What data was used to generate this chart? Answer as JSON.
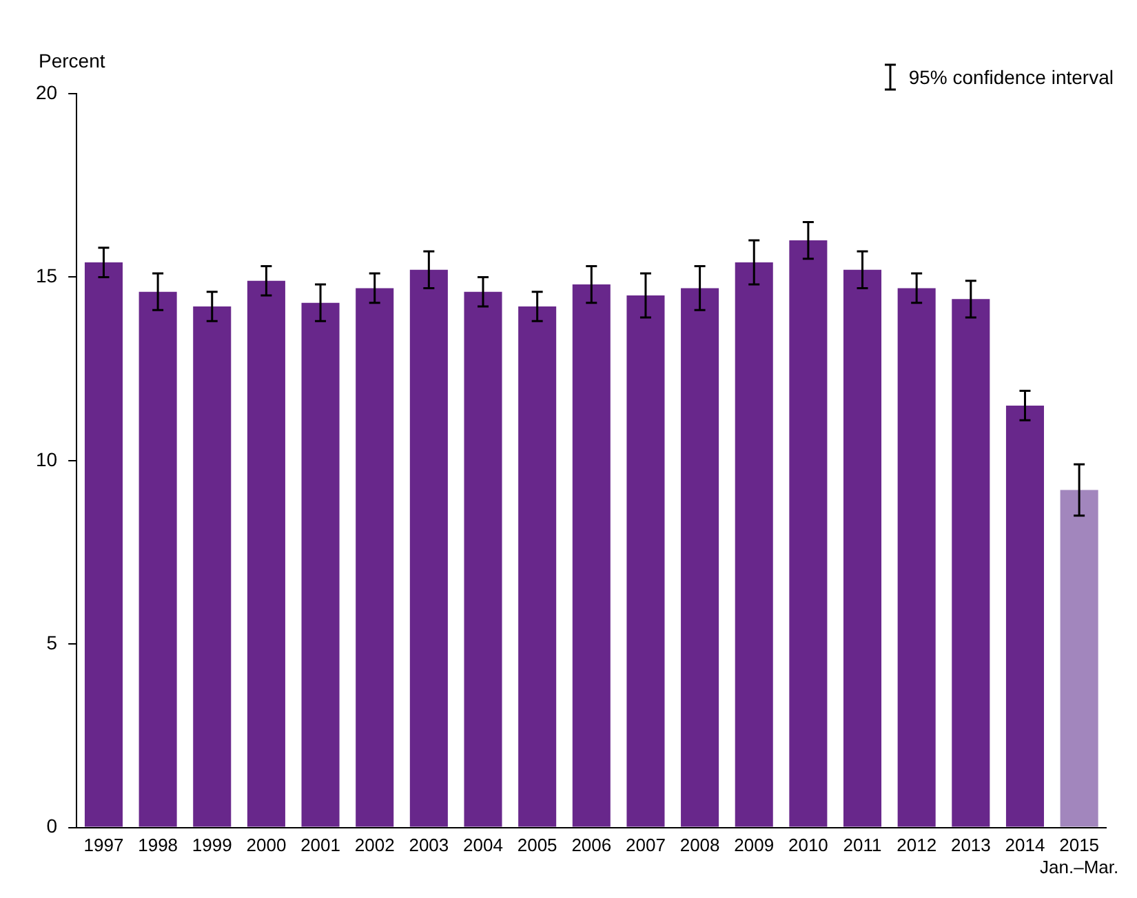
{
  "chart_data": {
    "type": "bar",
    "ylabel": "Percent",
    "categories": [
      "1997",
      "1998",
      "1999",
      "2000",
      "2001",
      "2002",
      "2003",
      "2004",
      "2005",
      "2006",
      "2007",
      "2008",
      "2009",
      "2010",
      "2011",
      "2012",
      "2013",
      "2014",
      "2015\nJan.–Mar."
    ],
    "values": [
      15.4,
      14.6,
      14.2,
      14.9,
      14.3,
      14.7,
      15.2,
      14.6,
      14.2,
      14.8,
      14.5,
      14.7,
      15.4,
      16.0,
      15.2,
      14.7,
      14.4,
      11.5,
      9.2
    ],
    "errors": [
      0.4,
      0.5,
      0.4,
      0.4,
      0.5,
      0.4,
      0.5,
      0.4,
      0.4,
      0.5,
      0.6,
      0.6,
      0.6,
      0.5,
      0.5,
      0.4,
      0.5,
      0.4,
      0.7
    ],
    "colors": [
      "#68278b",
      "#68278b",
      "#68278b",
      "#68278b",
      "#68278b",
      "#68278b",
      "#68278b",
      "#68278b",
      "#68278b",
      "#68278b",
      "#68278b",
      "#68278b",
      "#68278b",
      "#68278b",
      "#68278b",
      "#68278b",
      "#68278b",
      "#68278b",
      "#a286bd"
    ],
    "ylim": [
      0,
      20
    ],
    "yticks": [
      0,
      5,
      10,
      15,
      20
    ],
    "grid": false,
    "annotations": [
      "95% confidence interval"
    ]
  }
}
